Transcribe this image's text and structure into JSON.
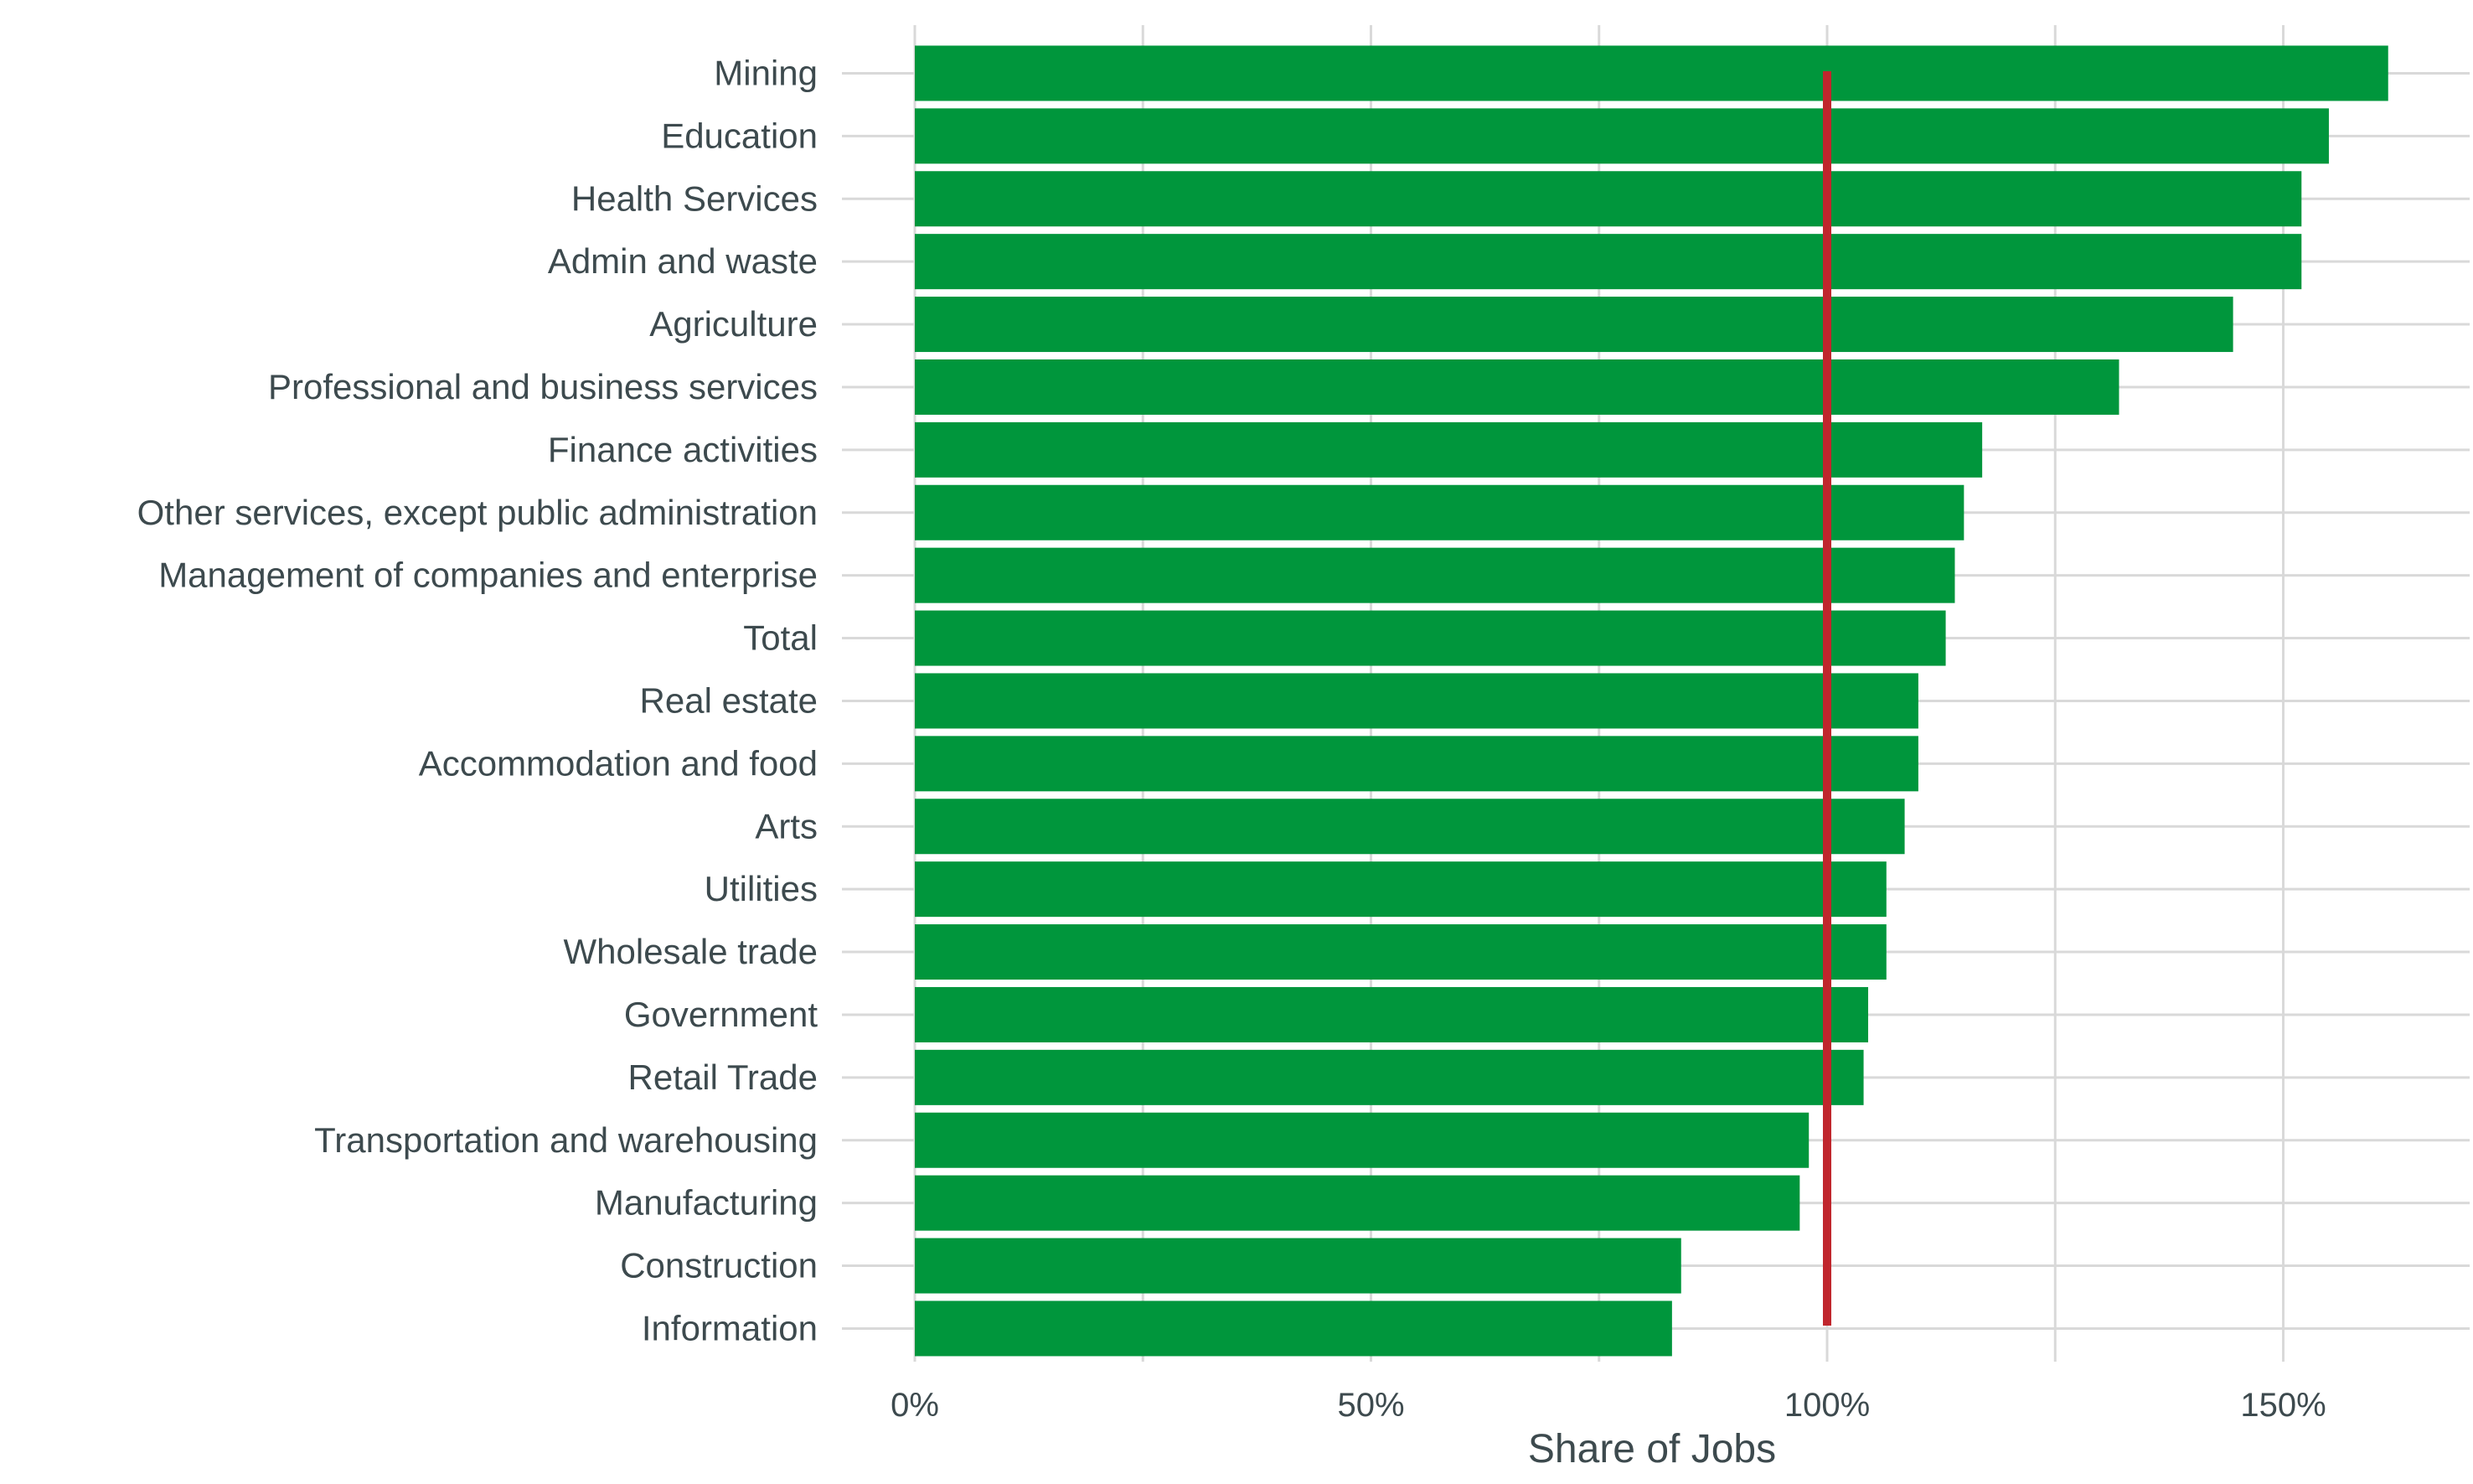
{
  "chart_data": {
    "type": "bar",
    "orientation": "horizontal",
    "title": "",
    "xlabel": "Share of Jobs",
    "ylabel": "",
    "categories": [
      "Mining",
      "Education",
      "Health Services",
      "Admin and waste",
      "Agriculture",
      "Professional and business services",
      "Finance activities",
      "Other services, except public administration",
      "Management of companies and enterprise",
      "Total",
      "Real estate",
      "Accommodation and food",
      "Arts",
      "Utilities",
      "Wholesale trade",
      "Government",
      "Retail Trade",
      "Transportation and warehousing",
      "Manufacturing",
      "Construction",
      "Information"
    ],
    "values": [
      161.5,
      155,
      152,
      152,
      144.5,
      132,
      117,
      115,
      114,
      113,
      110,
      110,
      108.5,
      106.5,
      106.5,
      104.5,
      104,
      98,
      97,
      84,
      83
    ],
    "value_unit": "%",
    "xlim": [
      0,
      167
    ],
    "x_ticks": [
      0,
      50,
      100,
      150
    ],
    "x_tick_labels": [
      "0%",
      "50%",
      "100%",
      "150%"
    ],
    "reference_line": {
      "value": 100,
      "color": "#c0262d"
    },
    "grid": true,
    "legend": "none",
    "colors": {
      "bar": "#00963c",
      "reference": "#c0262d",
      "grid": "#d9d9d9",
      "text": "#3d4a4e"
    }
  }
}
